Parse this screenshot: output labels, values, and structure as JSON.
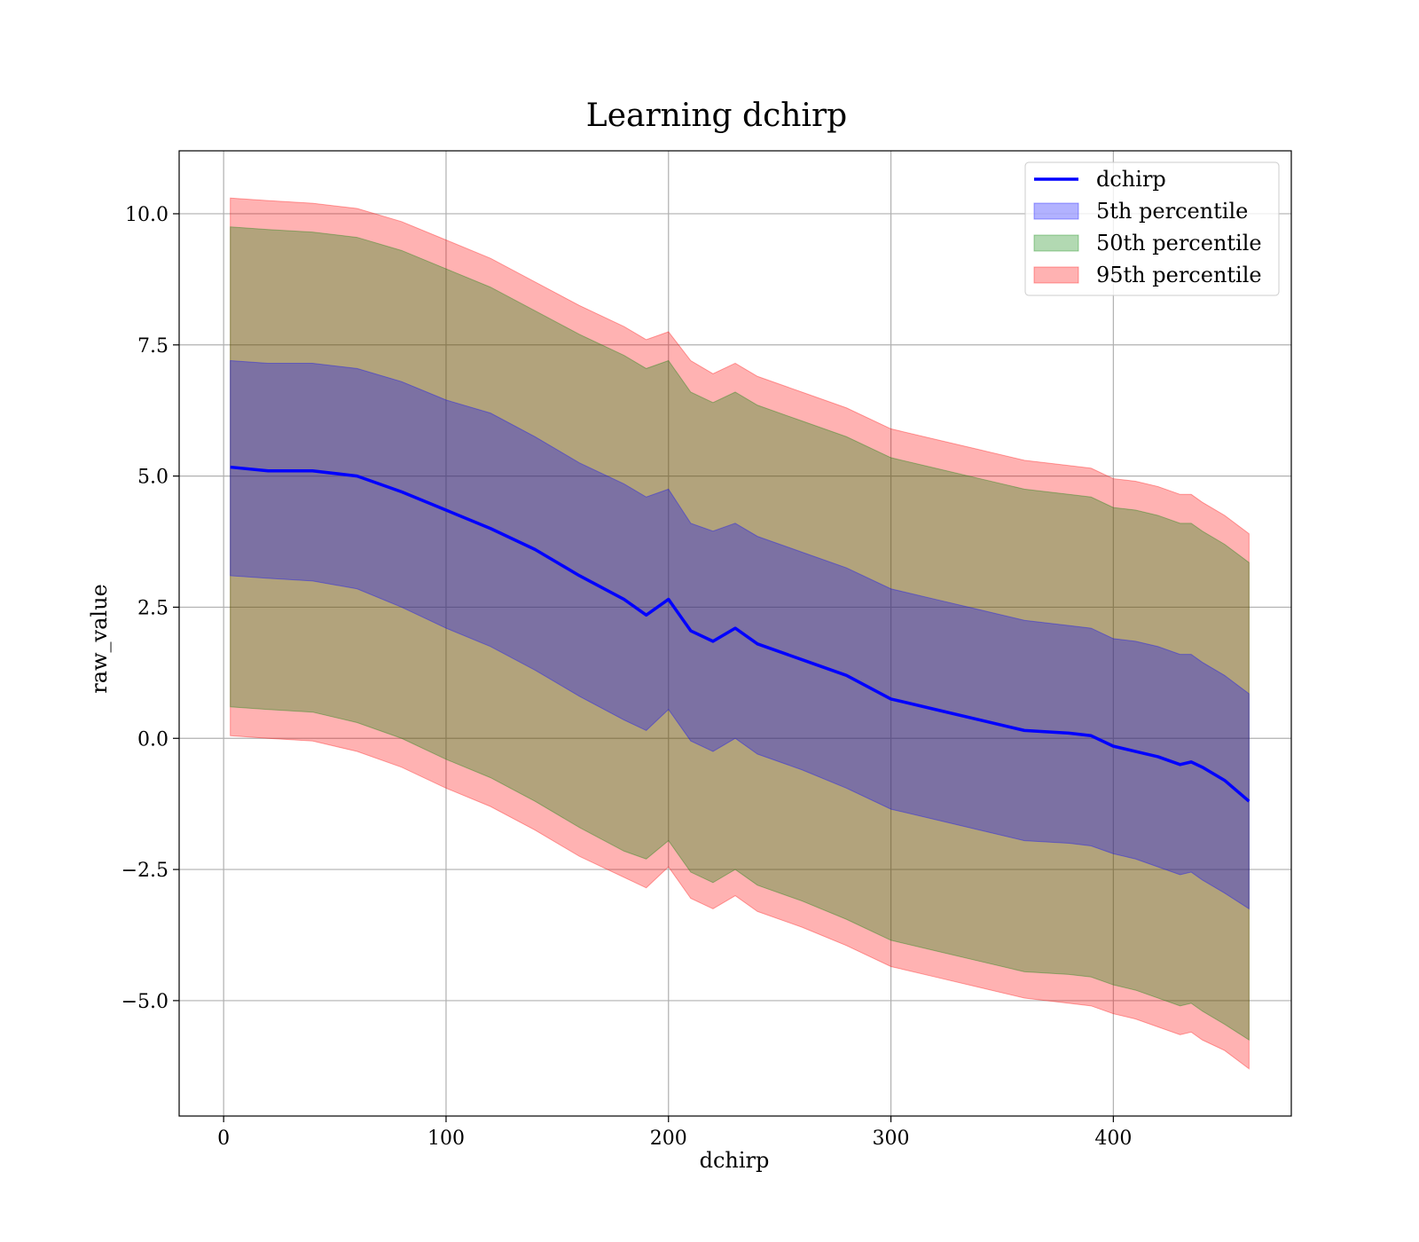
{
  "chart_data": {
    "type": "area",
    "title": "Learning dchirp",
    "xlabel": "dchirp",
    "ylabel": "raw_value",
    "xlim": [
      -20,
      480
    ],
    "ylim": [
      -7.2,
      11.2
    ],
    "xticks": [
      0,
      100,
      200,
      300,
      400
    ],
    "yticks": [
      -5.0,
      -2.5,
      0.0,
      2.5,
      5.0,
      7.5,
      10.0
    ],
    "x_tick_labels": [
      "0",
      "100",
      "200",
      "300",
      "400"
    ],
    "y_tick_labels": [
      "−5.0",
      "−2.5",
      "0.0",
      "2.5",
      "5.0",
      "7.5",
      "10.0"
    ],
    "grid": true,
    "legend_position": "top-right",
    "x": [
      3,
      20,
      40,
      60,
      80,
      100,
      120,
      140,
      160,
      180,
      190,
      200,
      210,
      220,
      230,
      240,
      260,
      280,
      300,
      320,
      340,
      360,
      380,
      390,
      400,
      410,
      420,
      430,
      435,
      440,
      450,
      461
    ],
    "series": [
      {
        "name": "dchirp",
        "kind": "line",
        "color": "#0000ff",
        "values": [
          5.17,
          5.1,
          5.1,
          5.0,
          4.7,
          4.35,
          4.0,
          3.6,
          3.1,
          2.65,
          2.35,
          2.65,
          2.05,
          1.85,
          2.1,
          1.8,
          1.5,
          1.2,
          0.75,
          0.55,
          0.35,
          0.15,
          0.1,
          0.05,
          -0.15,
          -0.25,
          -0.35,
          -0.5,
          -0.45,
          -0.55,
          -0.8,
          -1.2
        ]
      },
      {
        "name": "5th percentile",
        "kind": "band",
        "color": "#0000ff",
        "alpha": 0.3,
        "lower": [
          3.1,
          3.05,
          3.0,
          2.85,
          2.5,
          2.1,
          1.75,
          1.3,
          0.8,
          0.35,
          0.15,
          0.55,
          -0.05,
          -0.25,
          0.0,
          -0.3,
          -0.6,
          -0.95,
          -1.35,
          -1.55,
          -1.75,
          -1.95,
          -2.0,
          -2.05,
          -2.2,
          -2.3,
          -2.45,
          -2.6,
          -2.55,
          -2.7,
          -2.95,
          -3.25
        ],
        "upper": [
          7.2,
          7.15,
          7.15,
          7.05,
          6.8,
          6.45,
          6.2,
          5.75,
          5.25,
          4.85,
          4.6,
          4.75,
          4.1,
          3.95,
          4.1,
          3.85,
          3.55,
          3.25,
          2.85,
          2.65,
          2.45,
          2.25,
          2.15,
          2.1,
          1.9,
          1.85,
          1.75,
          1.6,
          1.6,
          1.45,
          1.2,
          0.85
        ]
      },
      {
        "name": "50th percentile",
        "kind": "band",
        "color": "#008000",
        "alpha": 0.3,
        "lower": [
          0.6,
          0.55,
          0.5,
          0.3,
          0.0,
          -0.4,
          -0.75,
          -1.2,
          -1.7,
          -2.15,
          -2.3,
          -1.95,
          -2.55,
          -2.75,
          -2.5,
          -2.8,
          -3.1,
          -3.45,
          -3.85,
          -4.05,
          -4.25,
          -4.45,
          -4.5,
          -4.55,
          -4.7,
          -4.8,
          -4.95,
          -5.1,
          -5.05,
          -5.2,
          -5.45,
          -5.75
        ],
        "upper": [
          9.75,
          9.7,
          9.65,
          9.55,
          9.3,
          8.95,
          8.6,
          8.15,
          7.7,
          7.3,
          7.05,
          7.2,
          6.6,
          6.4,
          6.6,
          6.35,
          6.05,
          5.75,
          5.35,
          5.15,
          4.95,
          4.75,
          4.65,
          4.6,
          4.4,
          4.35,
          4.25,
          4.1,
          4.1,
          3.95,
          3.7,
          3.35
        ]
      },
      {
        "name": "95th percentile",
        "kind": "band",
        "color": "#ff0000",
        "alpha": 0.3,
        "lower": [
          0.05,
          0.0,
          -0.05,
          -0.25,
          -0.55,
          -0.95,
          -1.3,
          -1.75,
          -2.25,
          -2.65,
          -2.85,
          -2.45,
          -3.05,
          -3.25,
          -3.0,
          -3.3,
          -3.6,
          -3.95,
          -4.35,
          -4.55,
          -4.75,
          -4.95,
          -5.05,
          -5.1,
          -5.25,
          -5.35,
          -5.5,
          -5.65,
          -5.6,
          -5.75,
          -5.95,
          -6.3
        ],
        "upper": [
          10.3,
          10.25,
          10.2,
          10.1,
          9.85,
          9.5,
          9.15,
          8.7,
          8.25,
          7.85,
          7.6,
          7.75,
          7.2,
          6.95,
          7.15,
          6.9,
          6.6,
          6.3,
          5.9,
          5.7,
          5.5,
          5.3,
          5.2,
          5.15,
          4.95,
          4.9,
          4.8,
          4.65,
          4.65,
          4.5,
          4.25,
          3.9
        ]
      }
    ]
  }
}
